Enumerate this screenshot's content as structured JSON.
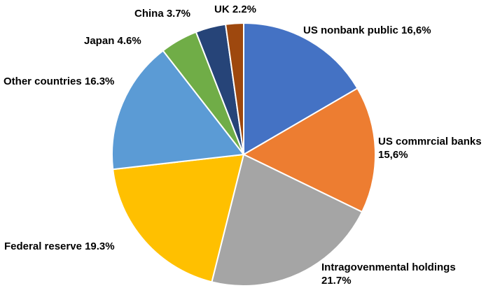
{
  "chart_data": {
    "type": "pie",
    "start_angle": "top",
    "direction": "clockwise",
    "slices": [
      {
        "label_lines": [
          "US nonbank public 16,6%"
        ],
        "value": 16.6,
        "color": "#4472C4"
      },
      {
        "label_lines": [
          "US commrcial banks",
          "15,6%"
        ],
        "value": 15.6,
        "color": "#ED7D31"
      },
      {
        "label_lines": [
          "Intragovenmental holdings",
          "21.7%"
        ],
        "value": 21.7,
        "color": "#A5A5A5"
      },
      {
        "label_lines": [
          "Federal reserve 19.3%"
        ],
        "value": 19.3,
        "color": "#FFC000"
      },
      {
        "label_lines": [
          "Other countries 16.3%"
        ],
        "value": 16.3,
        "color": "#5B9BD5"
      },
      {
        "label_lines": [
          "Japan 4.6%"
        ],
        "value": 4.6,
        "color": "#70AD47"
      },
      {
        "label_lines": [
          "China 3.7%"
        ],
        "value": 3.7,
        "color": "#264478"
      },
      {
        "label_lines": [
          "UK 2.2%"
        ],
        "value": 2.2,
        "color": "#9E480E"
      }
    ]
  }
}
